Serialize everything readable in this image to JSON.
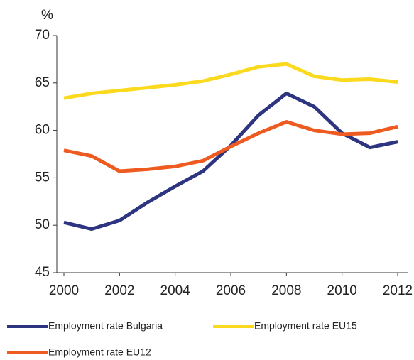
{
  "chart_data": {
    "type": "line",
    "ylabel": "%",
    "x": [
      2000,
      2001,
      2002,
      2003,
      2004,
      2005,
      2006,
      2007,
      2008,
      2009,
      2010,
      2011,
      2012
    ],
    "xlim": [
      2000,
      2012
    ],
    "xticks": [
      2000,
      2002,
      2004,
      2006,
      2008,
      2010,
      2012
    ],
    "ylim": [
      45,
      70
    ],
    "yticks": [
      45,
      50,
      55,
      60,
      65,
      70
    ],
    "grid": false,
    "legend": "bottom",
    "series": [
      {
        "name": "Employment rate Bulgaria",
        "color": "#2e3580",
        "values": [
          50.3,
          49.6,
          50.5,
          52.4,
          54.1,
          55.7,
          58.4,
          61.6,
          63.9,
          62.5,
          59.7,
          58.2,
          58.8
        ]
      },
      {
        "name": "Employment rate EU15",
        "color": "#fbd91e",
        "values": [
          63.4,
          63.9,
          64.2,
          64.5,
          64.8,
          65.2,
          65.9,
          66.7,
          67.0,
          65.7,
          65.3,
          65.4,
          65.1
        ]
      },
      {
        "name": "Employment rate EU12",
        "color": "#ee5a1f",
        "values": [
          57.9,
          57.3,
          55.7,
          55.9,
          56.2,
          56.8,
          58.3,
          59.7,
          60.9,
          60.0,
          59.6,
          59.7,
          60.4
        ]
      }
    ]
  }
}
